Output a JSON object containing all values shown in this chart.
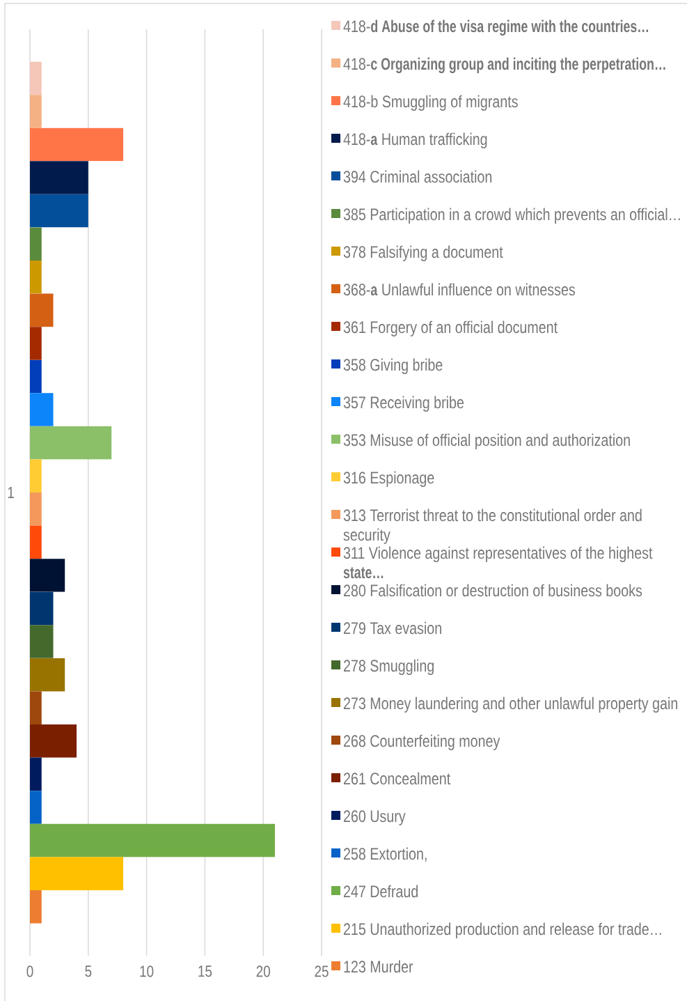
{
  "chart_data": {
    "type": "bar",
    "orientation": "horizontal",
    "categories": [
      "1"
    ],
    "series": [
      {
        "name": "418-**d Abuse of the visa regime with the countries…**",
        "color": "#f4c7b8",
        "values": [
          1
        ]
      },
      {
        "name": "418-**c Organizing group and inciting the perpetration…**",
        "color": "#f4b183",
        "values": [
          1
        ]
      },
      {
        "name": "418-b Smuggling of migrants",
        "color": "#ff7548",
        "values": [
          8
        ]
      },
      {
        "name": "418-**a** Human trafficking",
        "color": "#011b4d",
        "values": [
          5
        ]
      },
      {
        "name": "394 Criminal association",
        "color": "#044f9a",
        "values": [
          5
        ]
      },
      {
        "name": "385 Participation in a crowd which prevents an official…",
        "color": "#5a8a3c",
        "values": [
          1
        ]
      },
      {
        "name": "378 Falsifying a document",
        "color": "#cc9900",
        "values": [
          1
        ]
      },
      {
        "name": "368-**a** Unlawful influence on witnesses",
        "color": "#d46014",
        "values": [
          2
        ]
      },
      {
        "name": "361 Forgery of an official document",
        "color": "#a52a00",
        "values": [
          1
        ]
      },
      {
        "name": "358 Giving bribe",
        "color": "#003eba",
        "values": [
          1
        ]
      },
      {
        "name": "357 Receiving bribe",
        "color": "#0c84fa",
        "values": [
          2
        ]
      },
      {
        "name": "353 Misuse of official position and authorization",
        "color": "#8cc068",
        "values": [
          7
        ]
      },
      {
        "name": "316 Espionage",
        "color": "#ffcc33",
        "values": [
          1
        ]
      },
      {
        "name": "313 Terrorist threat to the constitutional order and security",
        "color": "#f4995b",
        "values": [
          1
        ]
      },
      {
        "name": "311 Violence against representatives of the highest **state…**",
        "color": "#ff4a0a",
        "values": [
          1
        ]
      },
      {
        "name": "280 Falsification or destruction of business books",
        "color": "#001233",
        "values": [
          3
        ]
      },
      {
        "name": "279 Tax evasion",
        "color": "#003670",
        "values": [
          2
        ]
      },
      {
        "name": "278 Smuggling",
        "color": "#44692d",
        "values": [
          2
        ]
      },
      {
        "name": "273 Money laundering and other unlawful property gain",
        "color": "#997300",
        "values": [
          3
        ]
      },
      {
        "name": "268 Counterfeiting money",
        "color": "#9e480e",
        "values": [
          1
        ]
      },
      {
        "name": "261 Concealment",
        "color": "#7a1f00",
        "values": [
          4
        ]
      },
      {
        "name": "260 Usury",
        "color": "#001c5e",
        "values": [
          1
        ]
      },
      {
        "name": "258 Extortion,",
        "color": "#0563c8",
        "values": [
          1
        ]
      },
      {
        "name": "247 Defraud",
        "color": "#70ad47",
        "values": [
          21
        ]
      },
      {
        "name": "215 Unauthorized production and release for trade…",
        "color": "#ffc000",
        "values": [
          8
        ]
      },
      {
        "name": "123 Murder",
        "color": "#ed7d31",
        "values": [
          1
        ]
      }
    ],
    "xlim": [
      0,
      25
    ],
    "xticks": [
      0,
      5,
      10,
      15,
      20,
      25
    ],
    "grid": "x",
    "legend": "right"
  }
}
